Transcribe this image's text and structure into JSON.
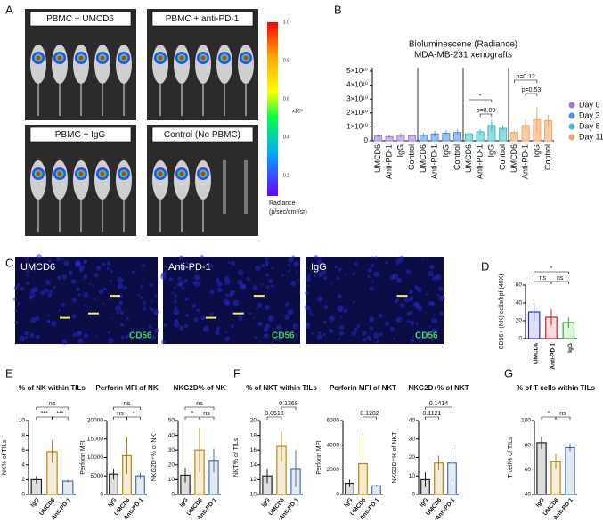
{
  "panel_labels": [
    "A",
    "B",
    "C",
    "D",
    "E",
    "F",
    "G"
  ],
  "imaging": {
    "groups": [
      "PBMC + UMCD6",
      "PBMC + anti-PD-1",
      "PBMC +  IgG",
      "Control (No PBMC)"
    ],
    "colorbar": {
      "ticks": [
        "1.0",
        "0.8",
        "0.6",
        "0.4",
        "0.2"
      ],
      "scale": "x10⁹",
      "label": "Radiance",
      "unit": "(p/sec/cm²/sr)"
    }
  },
  "microscopy": {
    "panels": [
      {
        "label": "UMCD6",
        "marker": "CD56"
      },
      {
        "label": "Anti-PD-1",
        "marker": "CD56"
      },
      {
        "label": "IgG",
        "marker": "CD56"
      }
    ]
  },
  "chart_data": [
    {
      "type": "grouped",
      "title": "Bioluminescene (Radiance)",
      "subtitle": "MDA-MB-231 xenografts",
      "categories": [
        "UMCD6",
        "Anti-PD-1",
        "IgG",
        "Control"
      ],
      "series": [
        {
          "name": "Day 0",
          "color": "#9b7fd4",
          "values": [
            3500000000,
            3000000000,
            4000000000,
            3500000000
          ],
          "errors": [
            1000000000,
            1000000000,
            1500000000,
            1000000000
          ]
        },
        {
          "name": "Day 3",
          "color": "#4f8fe6",
          "values": [
            4000000000,
            5000000000,
            5500000000,
            6000000000
          ],
          "errors": [
            1500000000,
            2000000000,
            2000000000,
            2000000000
          ]
        },
        {
          "name": "Day 8",
          "color": "#3fbfc8",
          "values": [
            5000000000,
            6500000000,
            11000000000,
            9000000000
          ],
          "errors": [
            1500000000,
            2000000000,
            4000000000,
            2000000000
          ]
        },
        {
          "name": "Day 11",
          "color": "#f4a261",
          "values": [
            6000000000,
            11000000000,
            15000000000,
            14500000000
          ],
          "errors": [
            1500000000,
            4000000000,
            9000000000,
            4000000000
          ]
        }
      ],
      "annotations": [
        "*",
        "p=0.09",
        "p=0.12",
        "p=0.53"
      ],
      "ylim": [
        0,
        50000000000
      ],
      "yticks": [
        0,
        {
          "value": 10000000000,
          "label": "1×10¹⁰"
        },
        {
          "value": 20000000000,
          "label": "2×10¹⁰"
        },
        {
          "value": 30000000000,
          "label": "3×10¹⁰"
        },
        {
          "value": 40000000000,
          "label": "4×10¹⁰"
        },
        {
          "value": 50000000000,
          "label": "5×10¹⁰"
        }
      ]
    },
    {
      "type": "bar",
      "ylabel": "CD56+ (NK) cells/hpf (40X)",
      "categories": [
        "UMCD6",
        "Anti-PD-1",
        "IgG"
      ],
      "values": [
        30,
        24,
        18
      ],
      "errors": [
        10,
        9,
        6
      ],
      "colors": [
        "#2233cc",
        "#cc2222",
        "#33aa33"
      ],
      "annotations": [
        "*",
        "ns",
        "ns"
      ],
      "ylim": [
        0,
        60
      ],
      "yticks": [
        0,
        20,
        40,
        60
      ]
    },
    {
      "type": "bar",
      "title": "% of NK within TILs",
      "ylabel": "NK% of TILs",
      "categories": [
        "IgG",
        "UMCD6",
        "Anti-PD-1"
      ],
      "values": [
        2,
        5.8,
        1.8
      ],
      "errors": [
        0.5,
        1.5,
        0.2
      ],
      "colors": [
        "#222222",
        "#b8860b",
        "#4a6fa5"
      ],
      "annotations": [
        "ns",
        "***",
        "***"
      ],
      "ylim": [
        0,
        10
      ],
      "yticks": [
        0,
        2,
        4,
        6,
        8,
        10
      ]
    },
    {
      "type": "bar",
      "title": "Perforin MFI of NK",
      "ylabel": "Perforin MFI",
      "categories": [
        "IgG",
        "UMCD6",
        "Anti-PD-1"
      ],
      "values": [
        5500,
        10500,
        5000
      ],
      "errors": [
        1500,
        5000,
        800
      ],
      "colors": [
        "#222222",
        "#b8860b",
        "#4a6fa5"
      ],
      "annotations": [
        "ns",
        "ns",
        "*"
      ],
      "ylim": [
        0,
        20000
      ],
      "yticks": [
        0,
        5000,
        10000,
        15000,
        20000
      ]
    },
    {
      "type": "bar",
      "title": "NKG2D% of NK",
      "ylabel": "NKG2D⁺% of NK",
      "categories": [
        "IgG",
        "UMCD6",
        "Anti-PD-1"
      ],
      "values": [
        13,
        30,
        23
      ],
      "errors": [
        5,
        15,
        8
      ],
      "colors": [
        "#222222",
        "#b8860b",
        "#4a6fa5"
      ],
      "annotations": [
        "ns",
        "*",
        "ns"
      ],
      "ylim": [
        0,
        50
      ],
      "yticks": [
        0,
        10,
        20,
        30,
        40,
        50
      ]
    },
    {
      "type": "bar",
      "title": "% of NKT within TILs",
      "ylabel": "NKT% of TILs",
      "categories": [
        "IgG",
        "UMCD6",
        "Anti-PD-1"
      ],
      "values": [
        12.5,
        16.5,
        13.5
      ],
      "errors": [
        1,
        2,
        2.5
      ],
      "colors": [
        "#222222",
        "#b8860b",
        "#4a6fa5"
      ],
      "annotations": [
        "0.1268",
        "0.0518"
      ],
      "ylim": [
        10,
        20
      ],
      "yticks": [
        10,
        12,
        14,
        16,
        18,
        20
      ]
    },
    {
      "type": "bar",
      "title": "Perforin MFI of NKT",
      "ylabel": "Perforin MFI",
      "categories": [
        "IgG",
        "UMCD6",
        "Anti-PD-1"
      ],
      "values": [
        900,
        2500,
        700
      ],
      "errors": [
        300,
        2500,
        100
      ],
      "colors": [
        "#222222",
        "#b8860b",
        "#4a6fa5"
      ],
      "annotations": [
        "0.1282"
      ],
      "ylim": [
        0,
        6000
      ],
      "yticks": [
        0,
        2000,
        4000,
        6000
      ]
    },
    {
      "type": "bar",
      "title": "NKG2D+% of NKT",
      "ylabel": "NKG2D⁺% of NKT",
      "categories": [
        "IgG",
        "UMCD6",
        "Anti-PD-1"
      ],
      "values": [
        8,
        17,
        17
      ],
      "errors": [
        4,
        4,
        10
      ],
      "colors": [
        "#222222",
        "#b8860b",
        "#4a6fa5"
      ],
      "annotations": [
        "0.1414",
        "0.1121"
      ],
      "ylim": [
        0,
        40
      ],
      "yticks": [
        0,
        10,
        20,
        30,
        40
      ]
    },
    {
      "type": "bar",
      "title": "% of T cells within TILs",
      "ylabel": "T cell% of TILs",
      "categories": [
        "IgG",
        "UMCD6",
        "Anti-PD-1"
      ],
      "values": [
        82,
        67,
        78
      ],
      "errors": [
        5,
        6,
        3
      ],
      "colors": [
        "#222222",
        "#b8860b",
        "#4a6fa5"
      ],
      "annotations": [
        "*",
        "ns"
      ],
      "ylim": [
        40,
        100
      ],
      "yticks": [
        40,
        60,
        80,
        100
      ]
    }
  ]
}
